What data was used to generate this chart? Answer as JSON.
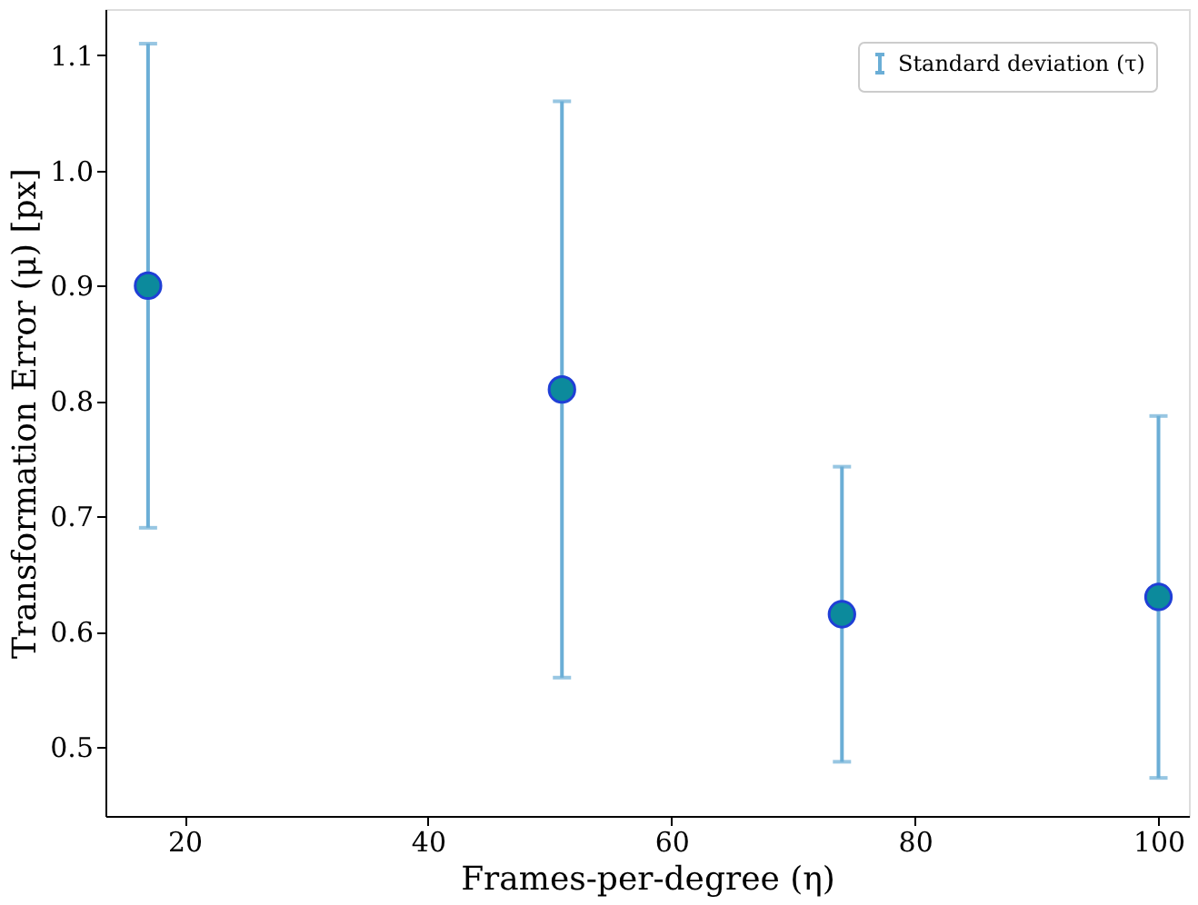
{
  "chart_data": {
    "type": "scatter",
    "xlabel": "Frames-per-degree (η)",
    "ylabel": "Transformation Error (μ) [px]",
    "x": [
      17,
      51,
      74,
      100
    ],
    "series": [
      {
        "name": "Standard deviation (τ)",
        "color": "#0c8a9c",
        "values": [
          0.9,
          0.81,
          0.615,
          0.63
        ],
        "errors": [
          [
            0.69,
            1.11
          ],
          [
            0.56,
            1.06
          ],
          [
            0.487,
            0.743
          ],
          [
            0.473,
            0.787
          ]
        ]
      }
    ],
    "xlim": [
      13.5,
      102.5
    ],
    "xticks": [
      20,
      40,
      60,
      80,
      100
    ],
    "ylim": [
      0.44,
      1.14
    ],
    "yticks": [
      0.5,
      0.6,
      0.7,
      0.8,
      0.9,
      {
        "value": 1.0,
        "label": "1.0"
      },
      1.1
    ],
    "grid": false,
    "legend": "top right",
    "marker": "circle"
  }
}
